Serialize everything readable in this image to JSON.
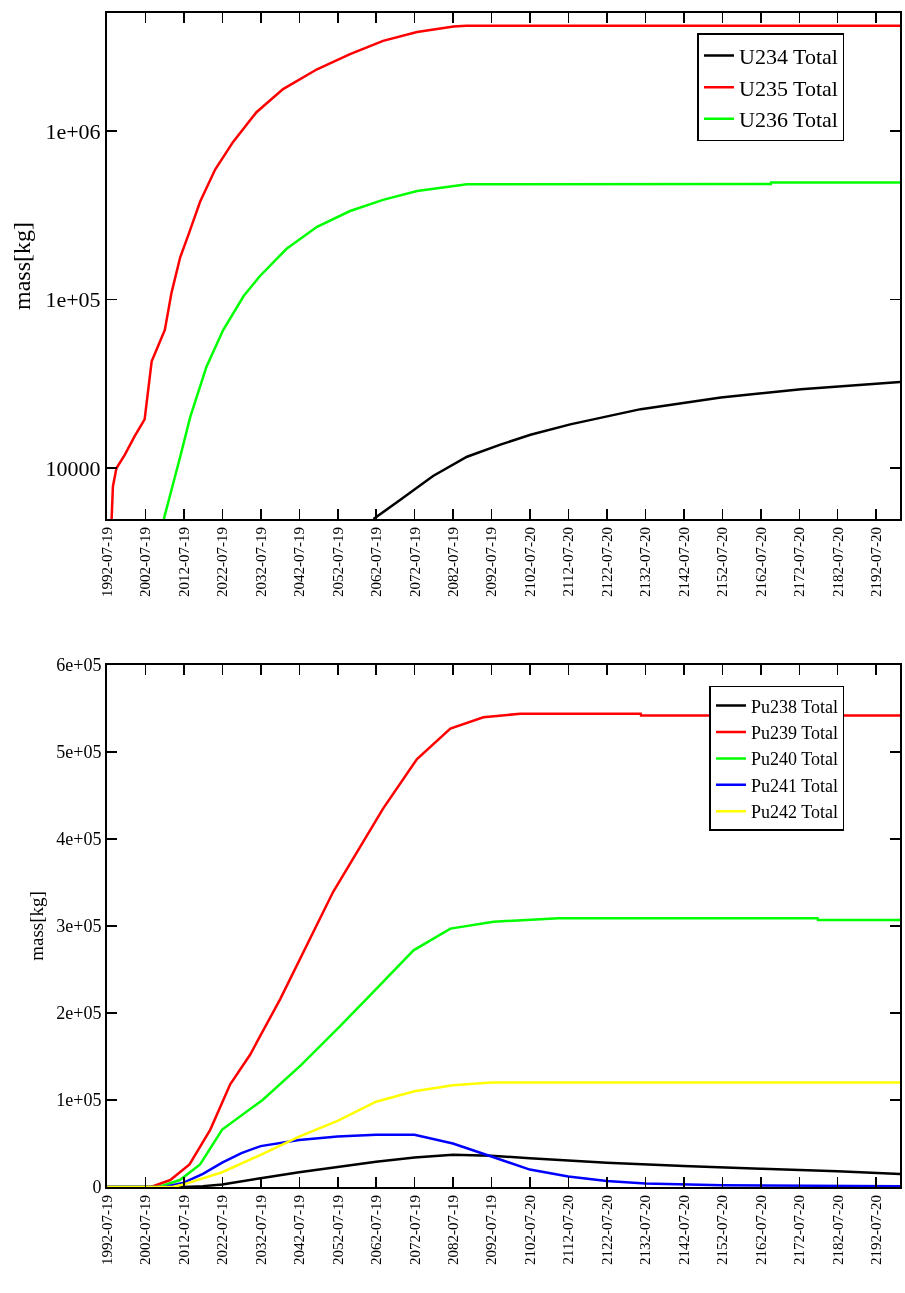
{
  "chart_data": [
    {
      "type": "line",
      "ylabel": "mass[kg]",
      "log": "y",
      "legend": "top right",
      "xlim": [
        "1992-07-19",
        "2198-10"
      ],
      "xticks": [
        "1992-07-19",
        "2002-07-19",
        "2012-07-19",
        "2022-07-19",
        "2032-07-19",
        "2042-07-19",
        "2052-07-19",
        "2062-07-19",
        "2072-07-19",
        "2082-07-19",
        "2092-07-19",
        "2102-07-20",
        "2112-07-20",
        "2122-07-20",
        "2132-07-20",
        "2142-07-20",
        "2152-07-20",
        "2162-07-20",
        "2172-07-20",
        "2182-07-20",
        "2192-07-20"
      ],
      "ylim": [
        5000,
        5000000
      ],
      "yticks": [
        10000,
        {
          "value": 100000,
          "label": "1e+05"
        },
        {
          "value": 1000000,
          "label": "1e+06"
        }
      ],
      "series": [
        {
          "name": "U234 Total",
          "color": "#000000",
          "x": [
            "2061-11",
            "2068-11",
            "2077-05",
            "2086-03",
            "2094-11",
            "2102-09",
            "2113-01",
            "2131-05",
            "2152-03",
            "2173-01",
            "2198-10"
          ],
          "values": [
            5000,
            6500,
            9000,
            11700,
            13800,
            15800,
            18200,
            22400,
            26300,
            29400,
            32500
          ]
        },
        {
          "name": "U235 Total",
          "color": "#ff0000",
          "x": [
            "1993-10",
            "1994-02",
            "1995-01",
            "1997-03",
            "1999-10",
            "2002-05",
            "2004-03",
            "2005-11",
            "2007-08",
            "2009-05",
            "2011-08",
            "2013-09",
            "2016-10",
            "2020-09",
            "2025-05",
            "2031-06",
            "2038-05",
            "2047-03",
            "2055-10",
            "2064-05",
            "2073-03",
            "2082-09",
            "2086-01",
            "2198-10"
          ],
          "values": [
            5000,
            7800,
            10000,
            12000,
            15500,
            19500,
            43000,
            53000,
            66000,
            110000,
            178000,
            240000,
            380000,
            590000,
            860000,
            1290000,
            1770000,
            2320000,
            2850000,
            3420000,
            3860000,
            4160000,
            4200000,
            4200000
          ]
        },
        {
          "name": "U236 Total",
          "color": "#00ff00",
          "x": [
            "2007-05",
            "2011-08",
            "2014-03",
            "2018-06",
            "2022-10",
            "2028-02",
            "2032-05",
            "2039-04",
            "2047-03",
            "2055-10",
            "2064-05",
            "2073-03",
            "2086-03",
            "2165-03",
            "2165-04",
            "2198-10"
          ],
          "values": [
            5000,
            11700,
            20000,
            40000,
            66000,
            105000,
            138000,
            200000,
            270000,
            335000,
            390000,
            440000,
            483000,
            485000,
            495000,
            495000
          ]
        }
      ]
    },
    {
      "type": "line",
      "ylabel": "mass[kg]",
      "legend": "top right",
      "xlim": [
        "1992-07-19",
        "2198-10"
      ],
      "xticks": [
        "1992-07-19",
        "2002-07-19",
        "2012-07-19",
        "2022-07-19",
        "2032-07-19",
        "2042-07-19",
        "2052-07-19",
        "2062-07-19",
        "2072-07-19",
        "2082-07-19",
        "2092-07-19",
        "2102-07-20",
        "2112-07-20",
        "2122-07-20",
        "2132-07-20",
        "2142-07-20",
        "2152-07-20",
        "2162-07-20",
        "2172-07-20",
        "2182-07-20",
        "2192-07-20"
      ],
      "ylim": [
        0,
        600000
      ],
      "yticks": [
        0,
        {
          "value": 100000,
          "label": "1e+05"
        },
        {
          "value": 200000,
          "label": "2e+05"
        },
        {
          "value": 300000,
          "label": "3e+05"
        },
        {
          "value": 400000,
          "label": "4e+05"
        },
        {
          "value": 500000,
          "label": "5e+05"
        },
        {
          "value": 600000,
          "label": "6e+05"
        }
      ],
      "series": [
        {
          "name": "Pu238 Total",
          "color": "#000000",
          "x": [
            "1992-08",
            "2012-07",
            "2017-07",
            "2022-07",
            "2032-07",
            "2042-07",
            "2052-07",
            "2062-07",
            "2072-07",
            "2082-07",
            "2092-07",
            "2102-07",
            "2122-07",
            "2142-07",
            "2162-07",
            "2182-07",
            "2198-10"
          ],
          "values": [
            0,
            0,
            1000,
            3000,
            10000,
            17000,
            23000,
            29000,
            34000,
            37000,
            36000,
            33000,
            28000,
            24000,
            21000,
            18000,
            15000
          ]
        },
        {
          "name": "Pu239 Total",
          "color": "#ff0000",
          "x": [
            "1992-08",
            "2004-01",
            "2009-01",
            "2014-01",
            "2019-06",
            "2024-08",
            "2029-10",
            "2037-08",
            "2051-05",
            "2064-05",
            "2073-03",
            "2081-11",
            "2090-06",
            "2100-01",
            "2131-05",
            "2131-06",
            "2198-10"
          ],
          "values": [
            0,
            0,
            8000,
            26000,
            66000,
            118000,
            152000,
            216000,
            339000,
            435000,
            492000,
            527000,
            540000,
            544000,
            544000,
            542000,
            542000
          ]
        },
        {
          "name": "Pu240 Total",
          "color": "#00ff00",
          "x": [
            "1992-08",
            "2006-01",
            "2011-07",
            "2016-10",
            "2022-07",
            "2033-01",
            "2043-01",
            "2053-03",
            "2060-01",
            "2072-04",
            "2081-11",
            "2093-02",
            "2110-01",
            "2177-05",
            "2177-06",
            "2198-10"
          ],
          "values": [
            0,
            0,
            8000,
            26000,
            66000,
            100000,
            140000,
            185000,
            216000,
            272000,
            297000,
            305000,
            309000,
            309000,
            307000,
            307000
          ]
        },
        {
          "name": "Pu241 Total",
          "color": "#0000ff",
          "x": [
            "1992-08",
            "2007-07",
            "2012-07",
            "2017-07",
            "2022-07",
            "2027-07",
            "2032-07",
            "2042-07",
            "2052-07",
            "2062-07",
            "2072-07",
            "2082-07",
            "2092-07",
            "2102-07",
            "2112-07",
            "2122-07",
            "2132-07",
            "2152-07",
            "2198-10"
          ],
          "values": [
            0,
            0,
            5000,
            15000,
            28000,
            39000,
            47000,
            54000,
            58000,
            60000,
            60000,
            50000,
            35000,
            20000,
            12000,
            7000,
            4000,
            2000,
            1000
          ]
        },
        {
          "name": "Pu242 Total",
          "color": "#ffff00",
          "x": [
            "1992-08",
            "2009-07",
            "2012-07",
            "2022-07",
            "2032-07",
            "2042-07",
            "2052-07",
            "2062-07",
            "2072-07",
            "2082-07",
            "2092-07",
            "2198-10"
          ],
          "values": [
            0,
            0,
            3000,
            17000,
            37000,
            58000,
            76000,
            98000,
            110000,
            117000,
            120000,
            120000
          ]
        }
      ]
    }
  ]
}
